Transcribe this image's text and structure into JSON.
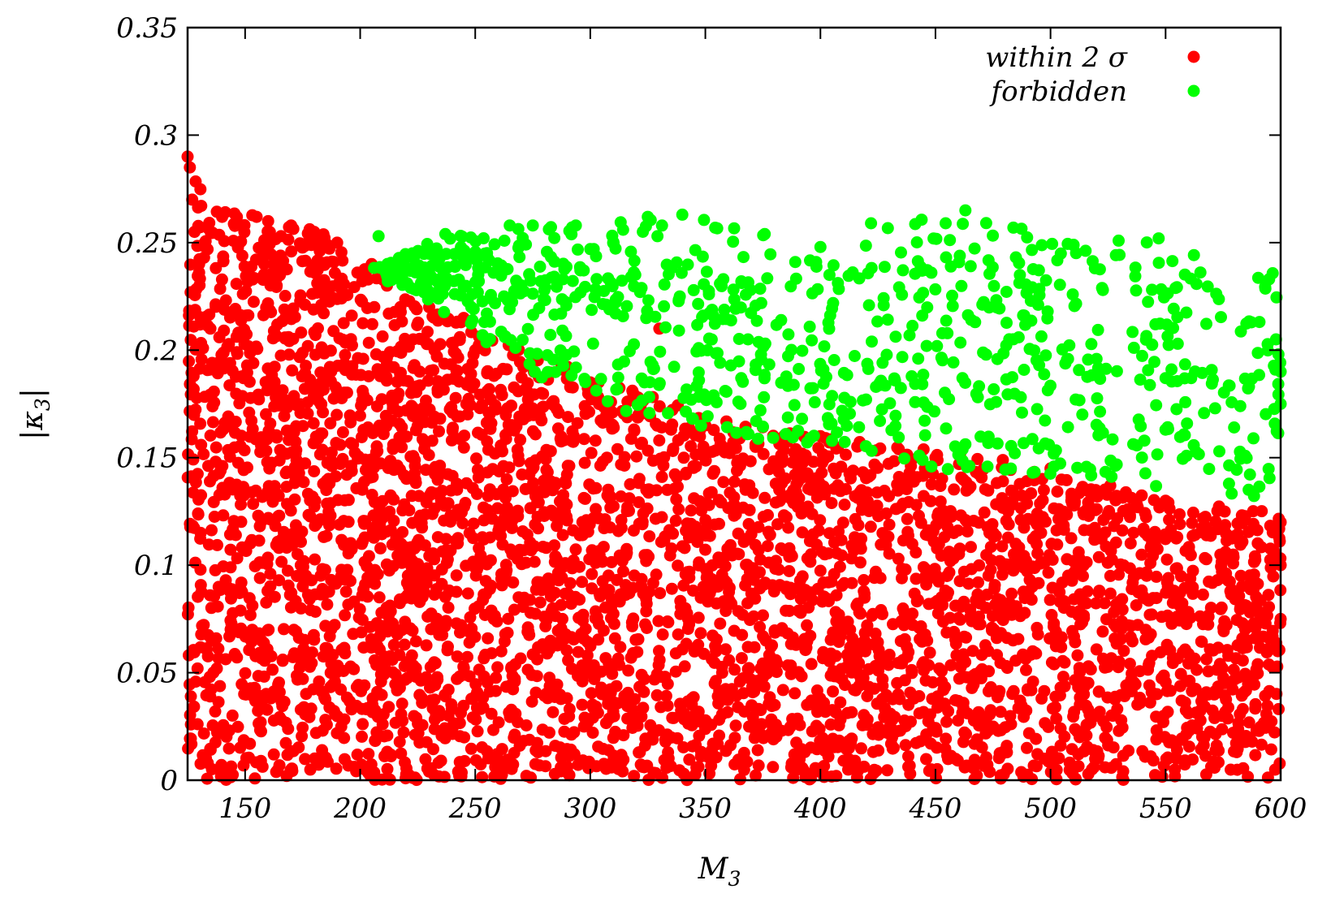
{
  "chart_data": {
    "type": "scatter",
    "xlabel": "M",
    "xlabel_sub": "3",
    "ylabel": "|κ",
    "ylabel_sub": "3",
    "ylabel_close": "|",
    "xlim": [
      125,
      600
    ],
    "ylim": [
      0,
      0.35
    ],
    "xticks": [
      "150",
      "200",
      "250",
      "300",
      "350",
      "400",
      "450",
      "500",
      "550",
      "600"
    ],
    "xtick_values": [
      150,
      200,
      250,
      300,
      350,
      400,
      450,
      500,
      550,
      600
    ],
    "yticks": [
      "0",
      "0.05",
      "0.1",
      "0.15",
      "0.2",
      "0.25",
      "0.3",
      "0.35"
    ],
    "ytick_values": [
      0,
      0.05,
      0.1,
      0.15,
      0.2,
      0.25,
      0.3,
      0.35
    ],
    "legend_position": "top-right",
    "grid": false,
    "series": [
      {
        "name": "within 2 σ",
        "color": "#ff0000",
        "approx_count": 4200,
        "upper_boundary": [
          [
            125,
            0.29
          ],
          [
            135,
            0.265
          ],
          [
            160,
            0.262
          ],
          [
            180,
            0.258
          ],
          [
            200,
            0.24
          ],
          [
            230,
            0.22
          ],
          [
            260,
            0.205
          ],
          [
            300,
            0.19
          ],
          [
            350,
            0.17
          ],
          [
            400,
            0.16
          ],
          [
            450,
            0.155
          ],
          [
            500,
            0.145
          ],
          [
            550,
            0.13
          ],
          [
            600,
            0.125
          ]
        ],
        "points": [
          [
            125,
            0.29
          ],
          [
            126,
            0.285
          ],
          [
            127,
            0.27
          ],
          [
            128,
            0.255
          ],
          [
            130,
            0.24
          ],
          [
            140,
            0.262
          ],
          [
            155,
            0.262
          ],
          [
            160,
            0.26
          ],
          [
            170,
            0.258
          ],
          [
            180,
            0.255
          ],
          [
            190,
            0.25
          ],
          [
            205,
            0.24
          ],
          [
            215,
            0.235
          ],
          [
            230,
            0.22
          ],
          [
            245,
            0.215
          ],
          [
            250,
            0.2
          ],
          [
            300,
            0.185
          ],
          [
            330,
            0.21
          ],
          [
            350,
            0.165
          ],
          [
            400,
            0.16
          ],
          [
            450,
            0.15
          ],
          [
            500,
            0.145
          ],
          [
            550,
            0.13
          ],
          [
            600,
            0.12
          ],
          [
            600,
            0.1
          ],
          [
            600,
            0.075
          ]
        ]
      },
      {
        "name": "forbidden",
        "color": "#00ff00",
        "approx_count": 900,
        "lower_boundary": [
          [
            210,
            0.235
          ],
          [
            240,
            0.215
          ],
          [
            270,
            0.19
          ],
          [
            300,
            0.175
          ],
          [
            350,
            0.16
          ],
          [
            400,
            0.155
          ],
          [
            450,
            0.145
          ],
          [
            500,
            0.14
          ],
          [
            550,
            0.135
          ],
          [
            600,
            0.13
          ]
        ],
        "upper_boundary": [
          [
            210,
            0.24
          ],
          [
            230,
            0.25
          ],
          [
            270,
            0.26
          ],
          [
            325,
            0.263
          ],
          [
            345,
            0.263
          ],
          [
            400,
            0.248
          ],
          [
            430,
            0.258
          ],
          [
            463,
            0.265
          ],
          [
            510,
            0.25
          ],
          [
            547,
            0.252
          ],
          [
            600,
            0.235
          ]
        ],
        "points": [
          [
            208,
            0.253
          ],
          [
            210,
            0.238
          ],
          [
            212,
            0.232
          ],
          [
            230,
            0.245
          ],
          [
            237,
            0.254
          ],
          [
            265,
            0.258
          ],
          [
            275,
            0.258
          ],
          [
            300,
            0.247
          ],
          [
            325,
            0.262
          ],
          [
            340,
            0.263
          ],
          [
            400,
            0.248
          ],
          [
            422,
            0.259
          ],
          [
            463,
            0.265
          ],
          [
            510,
            0.249
          ],
          [
            547,
            0.252
          ],
          [
            595,
            0.233
          ],
          [
            598,
            0.205
          ],
          [
            600,
            0.19
          ],
          [
            600,
            0.175
          ]
        ]
      }
    ]
  }
}
